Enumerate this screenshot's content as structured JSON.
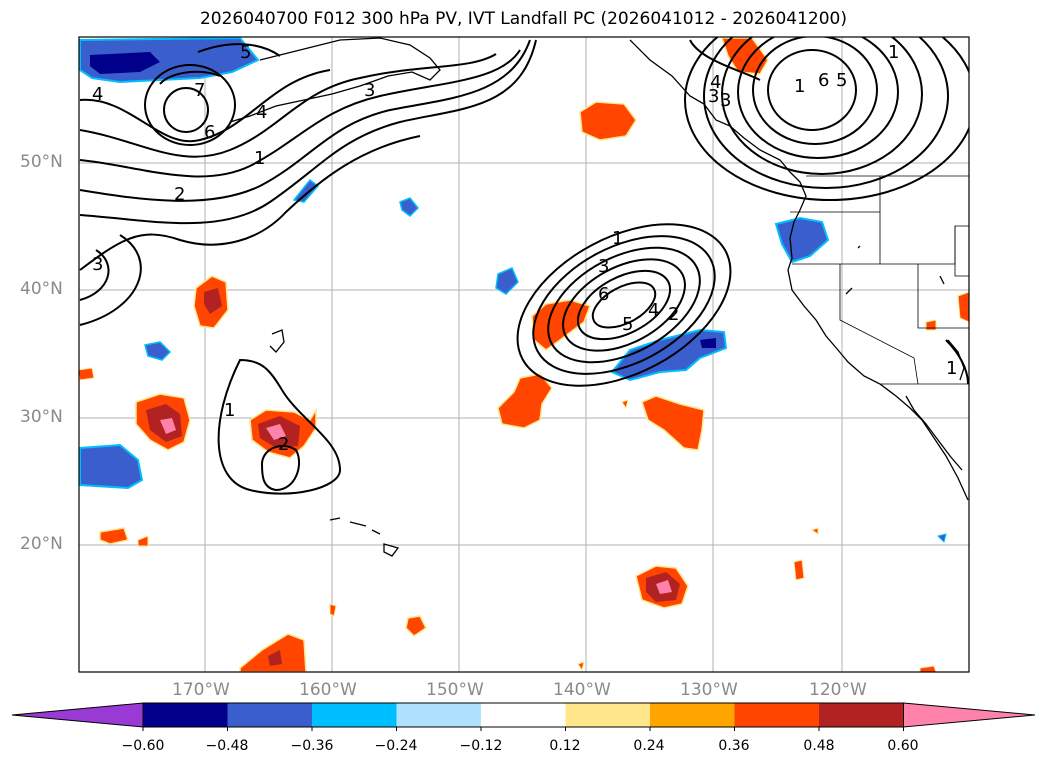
{
  "title": "2026040700 F012 300 hPa PV, IVT Landfall PC (2026041012 - 2026041200)",
  "lat_labels": [
    "50°N",
    "40°N",
    "30°N",
    "20°N"
  ],
  "lon_labels": [
    "170°W",
    "160°W",
    "150°W",
    "140°W",
    "130°W",
    "120°W"
  ],
  "colorbar": {
    "ticks": [
      "−0.60",
      "−0.48",
      "−0.36",
      "−0.24",
      "−0.12",
      "0.12",
      "0.24",
      "0.36",
      "0.48",
      "0.60"
    ],
    "colors": [
      "#9a3ad4",
      "#00008b",
      "#3a5fcd",
      "#00bfff",
      "#b0e2ff",
      "#ffffff",
      "#ffe68a",
      "#ffa500",
      "#ff4500",
      "#b22222",
      "#ff82ab"
    ]
  },
  "contour_labels": {
    "pv_nw": [
      "5",
      "7",
      "6",
      "4",
      "1",
      "2",
      "3",
      "3",
      "4"
    ],
    "pv_ne": [
      "1",
      "6",
      "5",
      "4",
      "3",
      "3",
      "1"
    ],
    "pv_center": [
      "1",
      "3",
      "6",
      "5",
      "4",
      "2"
    ],
    "pv_sw": [
      "1",
      "2"
    ],
    "pv_coast": [
      "1"
    ]
  }
}
